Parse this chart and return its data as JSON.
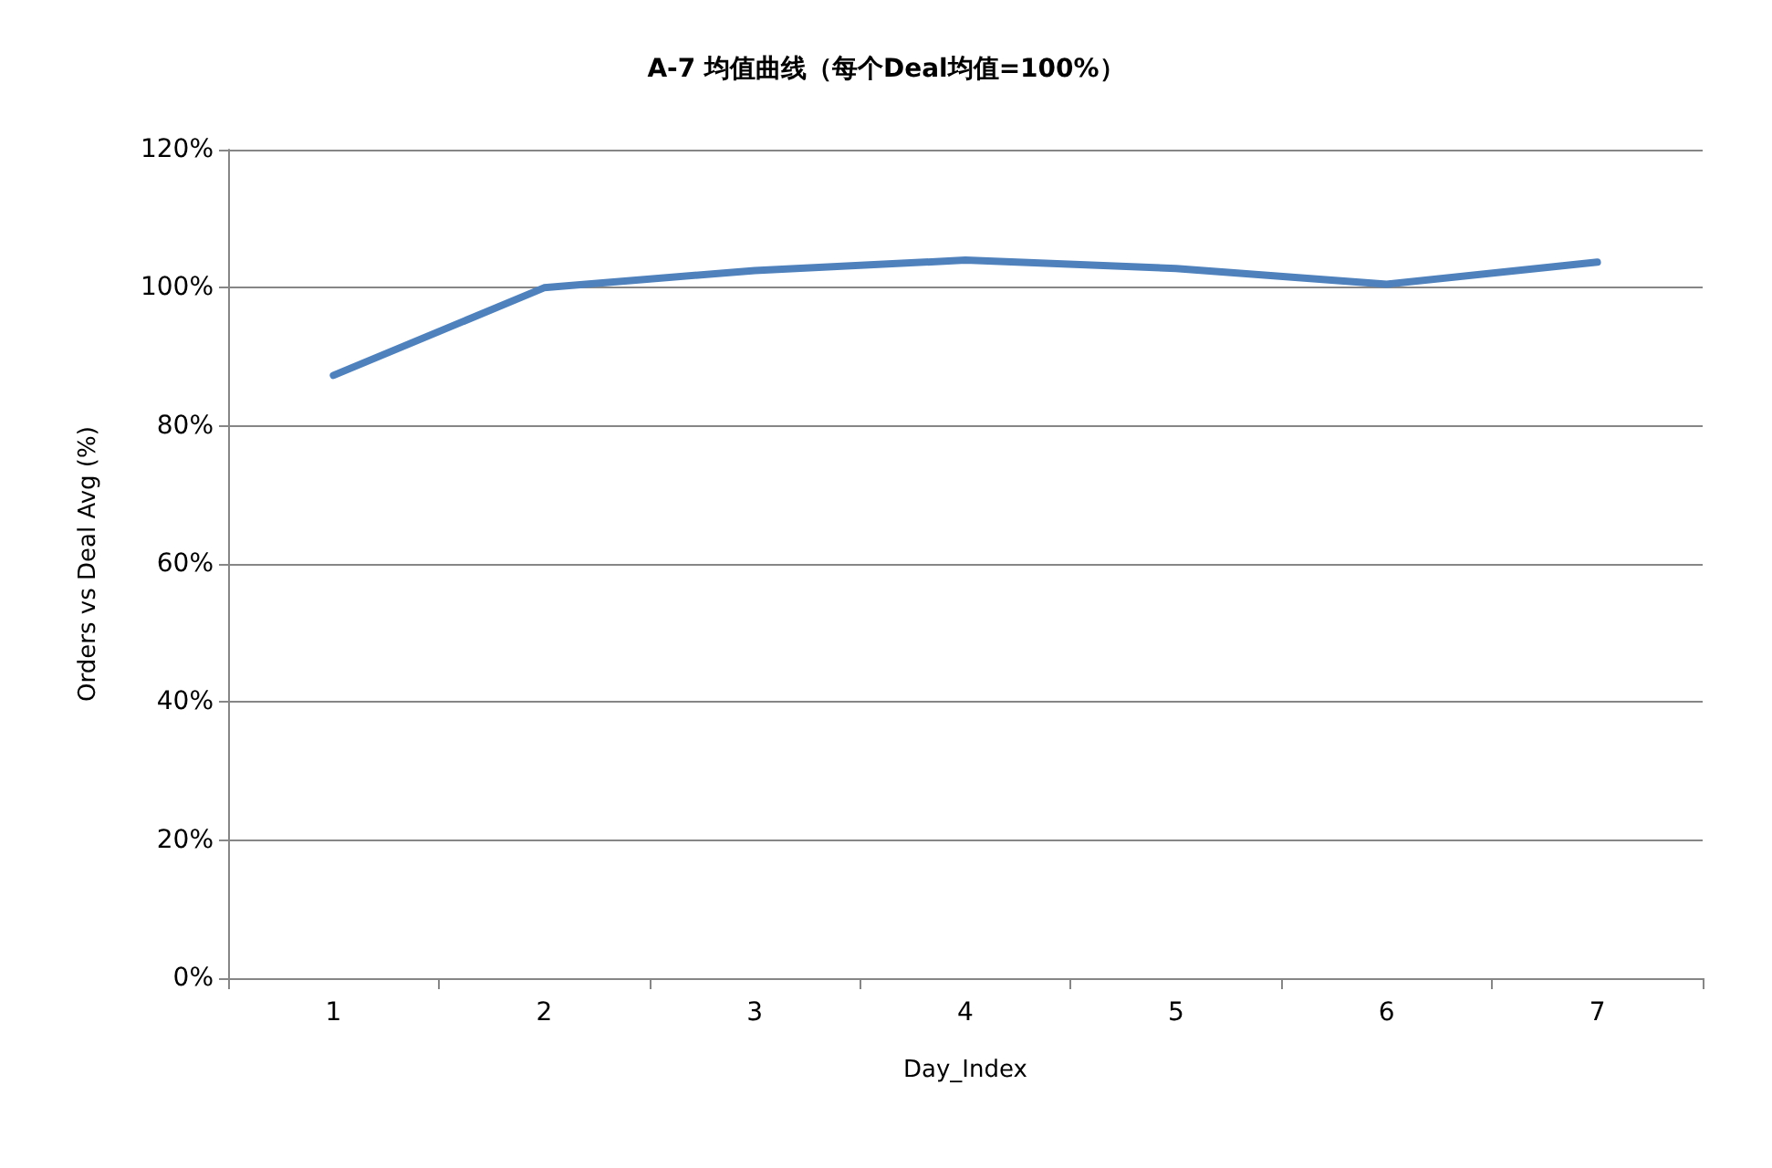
{
  "chart_data": {
    "type": "line",
    "title": "A-7 均值曲线（每个Deal均值=100%）",
    "xlabel": "Day_Index",
    "ylabel": "Orders vs Deal Avg (%)",
    "categories": [
      "1",
      "2",
      "3",
      "4",
      "5",
      "6",
      "7"
    ],
    "series": [
      {
        "color": "#4f81bd",
        "values": [
          87.3,
          100,
          102.5,
          104,
          102.8,
          100.5,
          103.7
        ]
      }
    ],
    "ylim": [
      0,
      120
    ],
    "yticks": [
      {
        "value": 0,
        "label": "0%"
      },
      {
        "value": 20,
        "label": "20%"
      },
      {
        "value": 40,
        "label": "40%"
      },
      {
        "value": 60,
        "label": "60%"
      },
      {
        "value": 80,
        "label": "80%"
      },
      {
        "value": 100,
        "label": "100%"
      },
      {
        "value": 120,
        "label": "120%"
      }
    ],
    "grid": "y",
    "marker": "none",
    "line_style": "solid"
  }
}
